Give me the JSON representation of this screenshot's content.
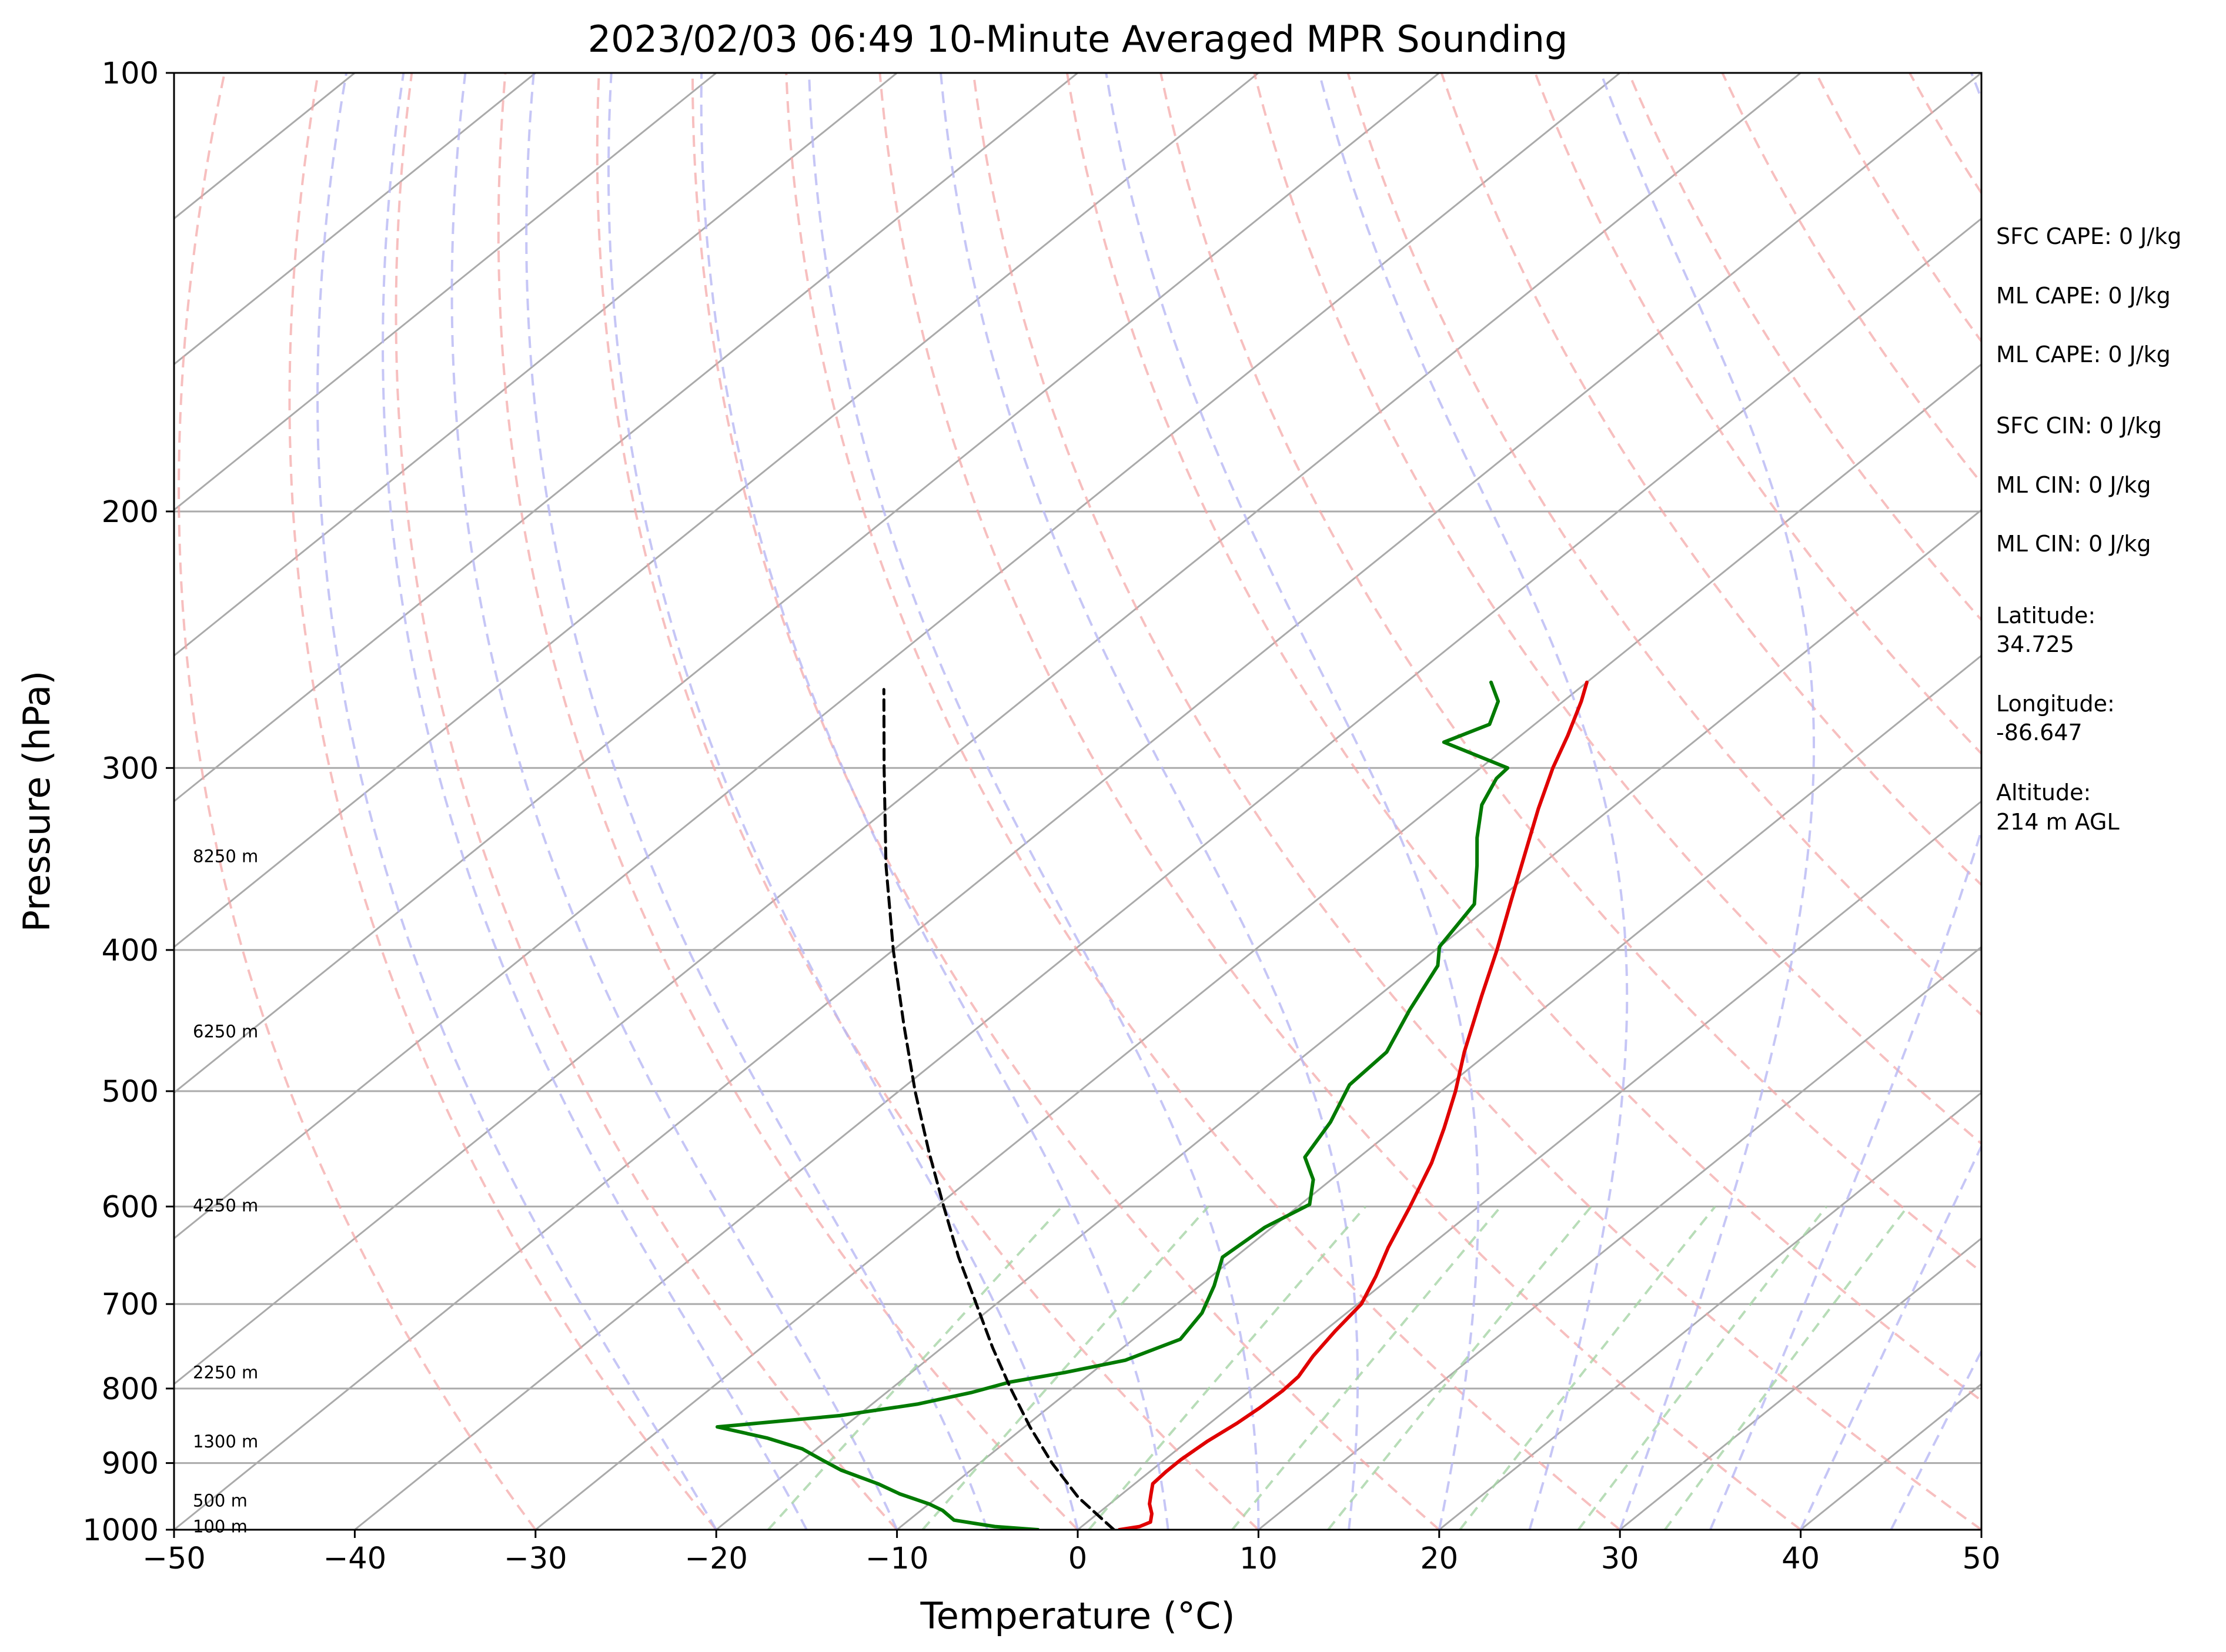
{
  "chart_data": {
    "type": "line",
    "subtype": "skew-T log-P diagram",
    "title": "2023/02/03 06:49 10-Minute Averaged MPR Sounding",
    "xlabel": "Temperature (°C)",
    "ylabel": "Pressure (hPa)",
    "xlim": [
      -50,
      50
    ],
    "ylim": [
      1000,
      100
    ],
    "y_scale": "log",
    "x_ticks": [
      "−50",
      "−40",
      "−30",
      "−20",
      "−10",
      "0",
      "10",
      "20",
      "30",
      "40",
      "50"
    ],
    "y_ticks": [
      "100",
      "200",
      "300",
      "400",
      "500",
      "600",
      "700",
      "800",
      "900",
      "1000"
    ],
    "height_labels": [
      {
        "label": "8250 m",
        "pressure": 345
      },
      {
        "label": "6250 m",
        "pressure": 455
      },
      {
        "label": "4250 m",
        "pressure": 599
      },
      {
        "label": "2250 m",
        "pressure": 780
      },
      {
        "label": "1300 m",
        "pressure": 870
      },
      {
        "label": "500 m",
        "pressure": 955
      },
      {
        "label": "100 m",
        "pressure": 995
      }
    ],
    "background_lines": {
      "isotherms": "gray",
      "dry_adiabats": "red dashed",
      "moist_adiabats": "blue dashed",
      "mixing_ratio": "green dashed"
    },
    "series": [
      {
        "role": "temperature",
        "color": "#e00000",
        "points": [
          [
            1000,
            2.3
          ],
          [
            995,
            3.2
          ],
          [
            988,
            3.5
          ],
          [
            975,
            3.0
          ],
          [
            960,
            2.2
          ],
          [
            945,
            1.6
          ],
          [
            930,
            1.0
          ],
          [
            912,
            0.9
          ],
          [
            895,
            0.9
          ],
          [
            870,
            1.1
          ],
          [
            845,
            1.5
          ],
          [
            825,
            1.7
          ],
          [
            803,
            1.8
          ],
          [
            785,
            1.7
          ],
          [
            760,
            1.1
          ],
          [
            730,
            0.6
          ],
          [
            700,
            0.2
          ],
          [
            670,
            -0.9
          ],
          [
            640,
            -2.2
          ],
          [
            600,
            -3.8
          ],
          [
            560,
            -5.6
          ],
          [
            530,
            -7.3
          ],
          [
            500,
            -9.2
          ],
          [
            470,
            -11.4
          ],
          [
            430,
            -14.3
          ],
          [
            400,
            -16.6
          ],
          [
            370,
            -19.2
          ],
          [
            340,
            -22.0
          ],
          [
            320,
            -24.0
          ],
          [
            300,
            -26.0
          ],
          [
            285,
            -27.4
          ],
          [
            270,
            -29.0
          ],
          [
            262,
            -30.0
          ]
        ]
      },
      {
        "role": "dewpoint",
        "color": "#007a00",
        "points": [
          [
            1000,
            -2.2
          ],
          [
            995,
            -4.8
          ],
          [
            985,
            -7.5
          ],
          [
            970,
            -8.8
          ],
          [
            960,
            -10.0
          ],
          [
            945,
            -12.3
          ],
          [
            930,
            -14.2
          ],
          [
            910,
            -17.2
          ],
          [
            895,
            -19.0
          ],
          [
            880,
            -20.8
          ],
          [
            865,
            -23.5
          ],
          [
            850,
            -27.0
          ],
          [
            845,
            -25.0
          ],
          [
            835,
            -21.0
          ],
          [
            820,
            -17.5
          ],
          [
            805,
            -15.3
          ],
          [
            792,
            -13.9
          ],
          [
            780,
            -11.5
          ],
          [
            765,
            -9.0
          ],
          [
            740,
            -7.4
          ],
          [
            710,
            -8.0
          ],
          [
            680,
            -9.2
          ],
          [
            650,
            -10.7
          ],
          [
            620,
            -10.4
          ],
          [
            598,
            -9.5
          ],
          [
            575,
            -11.0
          ],
          [
            555,
            -13.0
          ],
          [
            525,
            -14.0
          ],
          [
            495,
            -15.5
          ],
          [
            470,
            -15.7
          ],
          [
            440,
            -17.3
          ],
          [
            410,
            -18.8
          ],
          [
            398,
            -20.0
          ],
          [
            372,
            -21.0
          ],
          [
            350,
            -23.5
          ],
          [
            335,
            -25.4
          ],
          [
            318,
            -27.4
          ],
          [
            305,
            -28.4
          ],
          [
            300,
            -28.5
          ],
          [
            288,
            -33.8
          ],
          [
            280,
            -32.5
          ],
          [
            270,
            -33.6
          ],
          [
            262,
            -35.3
          ]
        ]
      },
      {
        "role": "parcel path",
        "color": "#000000",
        "dashed": true,
        "points": [
          [
            1000,
            2.0
          ],
          [
            950,
            -2.2
          ],
          [
            900,
            -6.0
          ],
          [
            850,
            -9.7
          ],
          [
            800,
            -13.4
          ],
          [
            750,
            -17.2
          ],
          [
            700,
            -21.1
          ],
          [
            650,
            -25.3
          ],
          [
            600,
            -29.6
          ],
          [
            550,
            -34.2
          ],
          [
            500,
            -39.1
          ],
          [
            450,
            -44.3
          ],
          [
            400,
            -50.0
          ],
          [
            350,
            -56.2
          ],
          [
            300,
            -63.0
          ],
          [
            265,
            -68.4
          ]
        ]
      }
    ]
  },
  "side_panel": {
    "sfc_cape": "SFC CAPE: 0 J/kg",
    "ml_cape_1": "ML CAPE: 0 J/kg",
    "ml_cape_2": "ML CAPE: 0 J/kg",
    "sfc_cin": "SFC CIN: 0 J/kg",
    "ml_cin_1": "ML CIN: 0 J/kg",
    "ml_cin_2": "ML CIN: 0 J/kg",
    "latitude_label": "Latitude:",
    "latitude_value": "34.725",
    "longitude_label": "Longitude:",
    "longitude_value": "-86.647",
    "altitude_label": "Altitude:",
    "altitude_value": "214 m AGL"
  }
}
